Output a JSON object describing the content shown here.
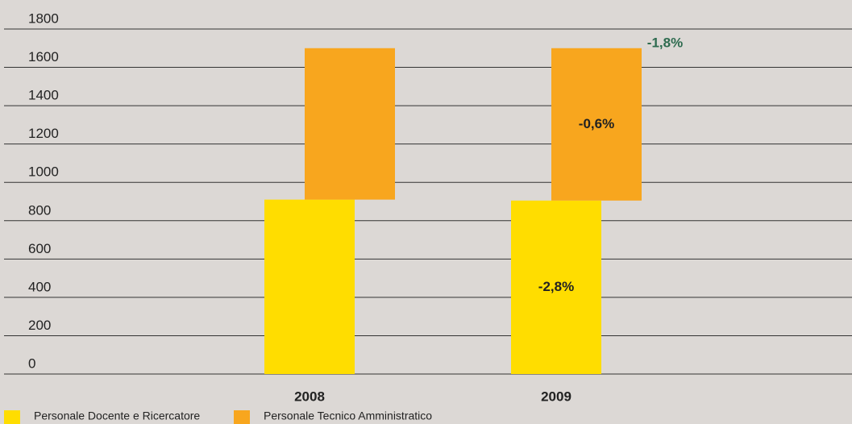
{
  "chart_data": {
    "type": "bar",
    "stacked": true,
    "categories": [
      "2008",
      "2009"
    ],
    "series": [
      {
        "name": "Personale Docente e Ricercatore",
        "color": "#ffdd00",
        "values": [
          910,
          905
        ]
      },
      {
        "name": "Personale Tecnico Amministratico",
        "color": "#f8a61e",
        "values": [
          790,
          795
        ]
      }
    ],
    "annotations": [
      "-2,8%",
      "-0,6%",
      "-1,8%"
    ],
    "ylim": [
      0,
      1800
    ],
    "yticks": [
      0,
      200,
      400,
      600,
      800,
      1000,
      1200,
      1400,
      1600,
      1800
    ],
    "grid": true
  }
}
